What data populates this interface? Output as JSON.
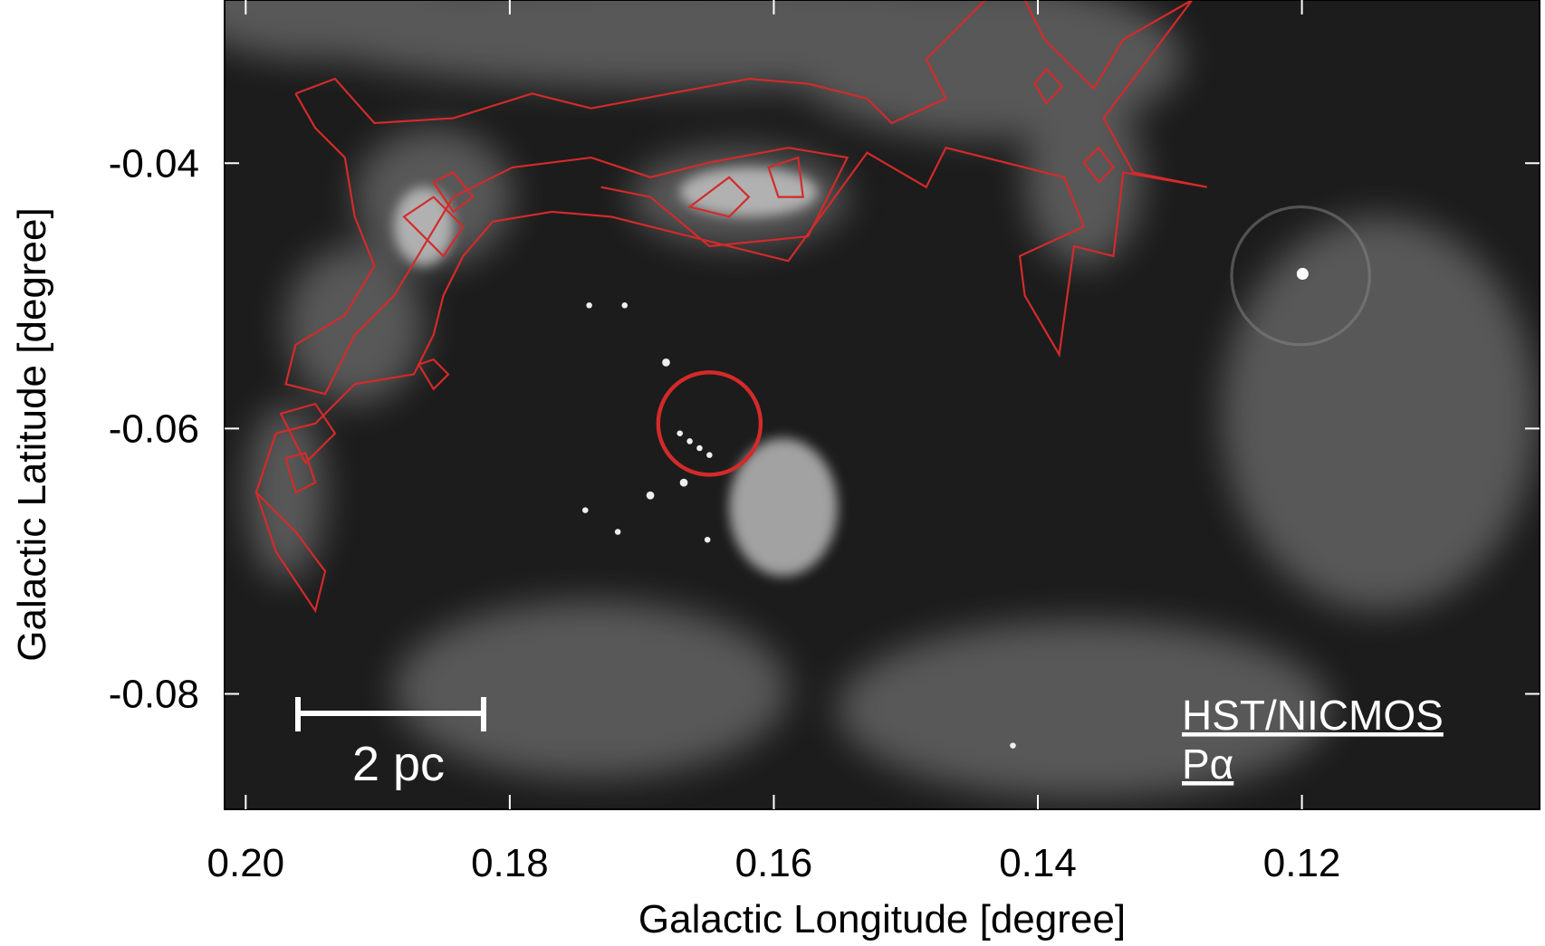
{
  "chart_data": {
    "type": "image",
    "xlabel": "Galactic Longitude [degree]",
    "ylabel": "Galactic Latitude [degree]",
    "xlim": [
      0.2016,
      0.102
    ],
    "ylim": [
      -0.0887,
      -0.0277
    ],
    "xticks": [
      {
        "value": 0.2,
        "label": "0.20"
      },
      0.18,
      0.16,
      0.14,
      0.12
    ],
    "yticks": [
      -0.04,
      -0.06,
      -0.08
    ],
    "scale_bar": "2 pc",
    "instrument": "HST/NICMOS",
    "band": "Pα"
  }
}
